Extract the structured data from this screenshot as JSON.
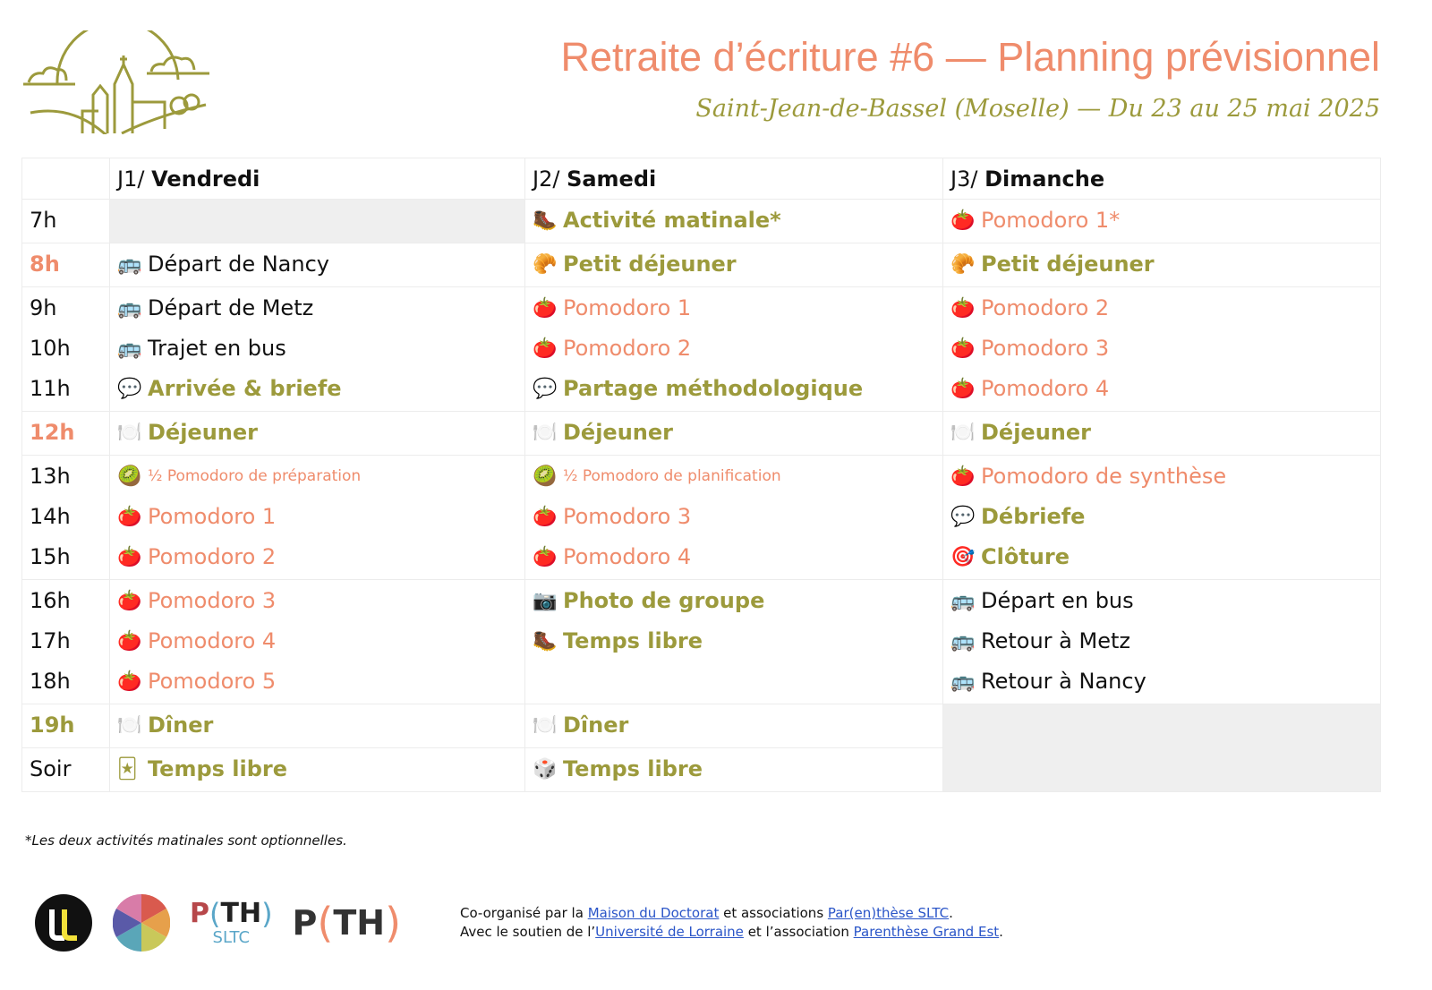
{
  "header": {
    "title": "Retraite d’écriture #6 — Planning prévisionnel",
    "subtitle": "Saint-Jean-de-Bassel (Moselle) — Du 23 au 25 mai 2025"
  },
  "colors": {
    "accent_orange": "#ef8c6c",
    "accent_olive": "#9c9a3c",
    "empty_cell": "#efefef"
  },
  "days": [
    {
      "prefix": "J1/ ",
      "name": "Vendredi"
    },
    {
      "prefix": "J2/ ",
      "name": "Samedi"
    },
    {
      "prefix": "J3/ ",
      "name": "Dimanche"
    }
  ],
  "rows": [
    {
      "times": [
        {
          "label": "7h",
          "style": "black"
        }
      ],
      "cells": [
        {
          "empty": true,
          "items": []
        },
        {
          "items": [
            {
              "icon": "🥾",
              "icon_name": "hiking-boot-icon",
              "text": "Activité matinale*",
              "style": "olive"
            }
          ]
        },
        {
          "items": [
            {
              "icon": "🍅",
              "icon_name": "tomato-icon",
              "text": "Pomodoro 1*",
              "style": "orange"
            }
          ]
        }
      ]
    },
    {
      "times": [
        {
          "label": "8h",
          "style": "t-orange"
        }
      ],
      "cells": [
        {
          "items": [
            {
              "icon": "🚌",
              "icon_name": "bus-icon",
              "text": "Départ de Nancy",
              "style": "black"
            }
          ]
        },
        {
          "items": [
            {
              "icon": "🥐",
              "icon_name": "croissant-icon",
              "text": "Petit déjeuner",
              "style": "olive"
            }
          ]
        },
        {
          "items": [
            {
              "icon": "🥐",
              "icon_name": "croissant-icon",
              "text": "Petit déjeuner",
              "style": "olive"
            }
          ]
        }
      ]
    },
    {
      "times": [
        {
          "label": "9h",
          "style": "black"
        },
        {
          "label": "10h",
          "style": "black"
        },
        {
          "label": "11h",
          "style": "black"
        }
      ],
      "cells": [
        {
          "items": [
            {
              "icon": "🚌",
              "icon_name": "bus-icon",
              "text": "Départ de Metz",
              "style": "black"
            },
            {
              "icon": "🚌",
              "icon_name": "bus-icon",
              "text": "Trajet en bus",
              "style": "black"
            },
            {
              "icon": "💬",
              "icon_name": "speech-bubble-icon",
              "text": "Arrivée & briefe",
              "style": "olive"
            }
          ]
        },
        {
          "items": [
            {
              "icon": "🍅",
              "icon_name": "tomato-icon",
              "text": "Pomodoro 1",
              "style": "orange"
            },
            {
              "icon": "🍅",
              "icon_name": "tomato-icon",
              "text": "Pomodoro 2",
              "style": "orange"
            },
            {
              "icon": "💬",
              "icon_name": "speech-bubble-icon",
              "text": "Partage méthodologique",
              "style": "olive"
            }
          ]
        },
        {
          "items": [
            {
              "icon": "🍅",
              "icon_name": "tomato-icon",
              "text": "Pomodoro 2",
              "style": "orange"
            },
            {
              "icon": "🍅",
              "icon_name": "tomato-icon",
              "text": "Pomodoro 3",
              "style": "orange"
            },
            {
              "icon": "🍅",
              "icon_name": "tomato-icon",
              "text": "Pomodoro 4",
              "style": "orange"
            }
          ]
        }
      ]
    },
    {
      "times": [
        {
          "label": "12h",
          "style": "t-orange"
        }
      ],
      "cells": [
        {
          "items": [
            {
              "icon": "🍽️",
              "icon_name": "plate-cutlery-icon",
              "text": "Déjeuner",
              "style": "olive"
            }
          ]
        },
        {
          "items": [
            {
              "icon": "🍽️",
              "icon_name": "plate-cutlery-icon",
              "text": "Déjeuner",
              "style": "olive"
            }
          ]
        },
        {
          "items": [
            {
              "icon": "🍽️",
              "icon_name": "plate-cutlery-icon",
              "text": "Déjeuner",
              "style": "olive"
            }
          ]
        }
      ]
    },
    {
      "times": [
        {
          "label": "13h",
          "style": "black"
        },
        {
          "label": "14h",
          "style": "black"
        },
        {
          "label": "15h",
          "style": "black"
        }
      ],
      "cells": [
        {
          "items": [
            {
              "icon": "🥝",
              "icon_name": "kiwi-icon",
              "text": "½ Pomodoro de préparation",
              "style": "small"
            },
            {
              "icon": "🍅",
              "icon_name": "tomato-icon",
              "text": "Pomodoro 1",
              "style": "orange"
            },
            {
              "icon": "🍅",
              "icon_name": "tomato-icon",
              "text": "Pomodoro 2",
              "style": "orange"
            }
          ]
        },
        {
          "items": [
            {
              "icon": "🥝",
              "icon_name": "kiwi-icon",
              "text": "½ Pomodoro de planification",
              "style": "small"
            },
            {
              "icon": "🍅",
              "icon_name": "tomato-icon",
              "text": "Pomodoro 3",
              "style": "orange"
            },
            {
              "icon": "🍅",
              "icon_name": "tomato-icon",
              "text": "Pomodoro 4",
              "style": "orange"
            }
          ]
        },
        {
          "items": [
            {
              "icon": "🍅",
              "icon_name": "tomato-icon",
              "text": "Pomodoro de synthèse",
              "style": "orange"
            },
            {
              "icon": "💬",
              "icon_name": "speech-bubble-icon",
              "text": "Débriefe",
              "style": "olive"
            },
            {
              "icon": "🎯",
              "icon_name": "target-icon",
              "text": "Clôture",
              "style": "olive"
            }
          ]
        }
      ]
    },
    {
      "times": [
        {
          "label": "16h",
          "style": "black"
        },
        {
          "label": "17h",
          "style": "black"
        },
        {
          "label": "18h",
          "style": "black"
        }
      ],
      "cells": [
        {
          "items": [
            {
              "icon": "🍅",
              "icon_name": "tomato-icon",
              "text": "Pomodoro 3",
              "style": "orange"
            },
            {
              "icon": "🍅",
              "icon_name": "tomato-icon",
              "text": "Pomodoro 4",
              "style": "orange"
            },
            {
              "icon": "🍅",
              "icon_name": "tomato-icon",
              "text": "Pomodoro 5",
              "style": "orange"
            }
          ]
        },
        {
          "items": [
            {
              "icon": "📷",
              "icon_name": "camera-icon",
              "text": "Photo de groupe",
              "style": "olive"
            },
            {
              "icon": "🥾",
              "icon_name": "hiking-boot-icon",
              "text": "Temps libre",
              "style": "olive"
            }
          ]
        },
        {
          "items": [
            {
              "icon": "🚌",
              "icon_name": "bus-icon",
              "text": "Départ en bus",
              "style": "black"
            },
            {
              "icon": "🚌",
              "icon_name": "bus-icon",
              "text": "Retour à Metz",
              "style": "black"
            },
            {
              "icon": "🚌",
              "icon_name": "bus-icon",
              "text": "Retour à Nancy",
              "style": "black"
            }
          ]
        }
      ]
    },
    {
      "times": [
        {
          "label": "19h",
          "style": "t-olive"
        }
      ],
      "cells": [
        {
          "items": [
            {
              "icon": "🍽️",
              "icon_name": "plate-cutlery-icon",
              "text": "Dîner",
              "style": "olive"
            }
          ]
        },
        {
          "items": [
            {
              "icon": "🍽️",
              "icon_name": "plate-cutlery-icon",
              "text": "Dîner",
              "style": "olive"
            }
          ]
        },
        {
          "empty": true,
          "rowspan": 2,
          "items": []
        }
      ]
    },
    {
      "times": [
        {
          "label": "Soir",
          "style": "black"
        }
      ],
      "cells": [
        {
          "items": [
            {
              "icon": "🃏",
              "icon_name": "joker-card-icon",
              "text": "Temps libre",
              "style": "olive"
            }
          ]
        },
        {
          "items": [
            {
              "icon": "🎲",
              "icon_name": "dice-icon",
              "text": "Temps libre",
              "style": "olive"
            }
          ]
        }
      ]
    }
  ],
  "footnote": "*Les deux activités matinales sont optionnelles.",
  "logos": [
    "UL",
    "PTH SLTC",
    "PTH"
  ],
  "credits": {
    "line1_a": "Co-organisé par la ",
    "link1": "Maison du Doctorat",
    "line1_b": " et associations ",
    "link2": "Par(en)thèse SLTC",
    "line1_c": ".",
    "line2_a": "Avec le soutien de l’",
    "link3": "Université de Lorraine",
    "line2_b": " et l’association ",
    "link4": "Parenthèse Grand Est",
    "line2_c": "."
  }
}
